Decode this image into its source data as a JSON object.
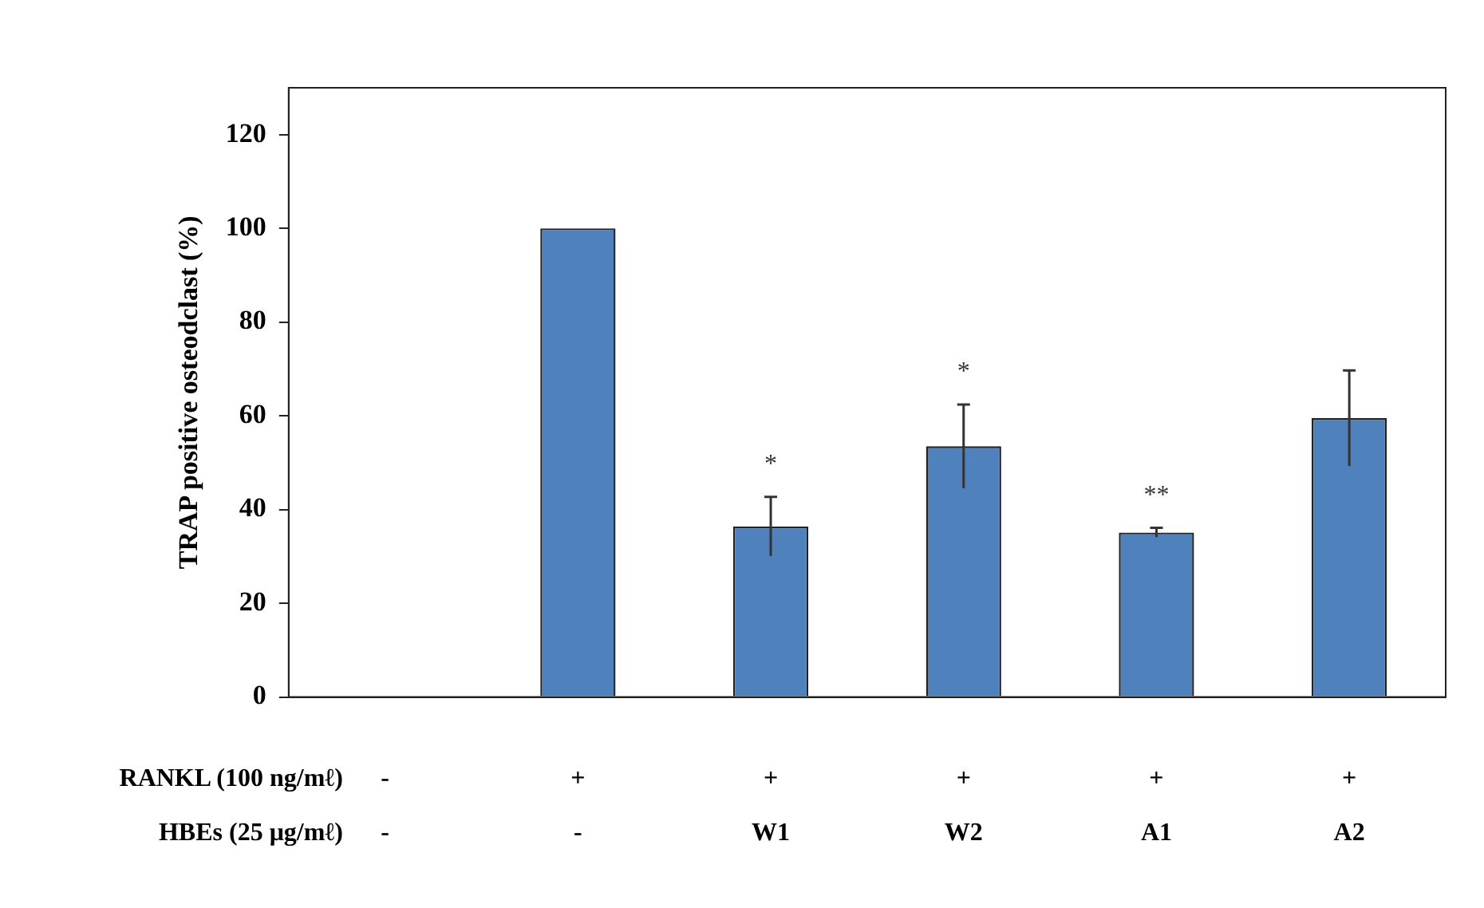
{
  "chart_data": {
    "type": "bar",
    "ylabel": "TRAP positive osteodclast (%)",
    "categories": [
      "-\n-",
      "+\n-",
      "+\nW1",
      "+\nW2",
      "+\nA1",
      "+\nA2"
    ],
    "values": [
      null,
      100,
      36.4,
      53.5,
      35.1,
      59.5
    ],
    "errors": [
      null,
      null,
      6.3,
      8.9,
      1,
      10.2
    ],
    "color": "#4f81bd",
    "ylim": [
      0,
      130
    ],
    "yticks": [
      0,
      20,
      40,
      60,
      80,
      100,
      120
    ],
    "grid": false,
    "legend": false,
    "annotations": [
      "RANKL (100 ng/mℓ)",
      "HBEs (25 μg/mℓ)",
      {
        "text": "*",
        "x": "+\nW1",
        "y": 42.7
      },
      {
        "text": "*",
        "x": "+\nW2",
        "y": 62.4
      },
      {
        "text": "**",
        "x": "+\nA1",
        "y": 36.1
      }
    ]
  }
}
